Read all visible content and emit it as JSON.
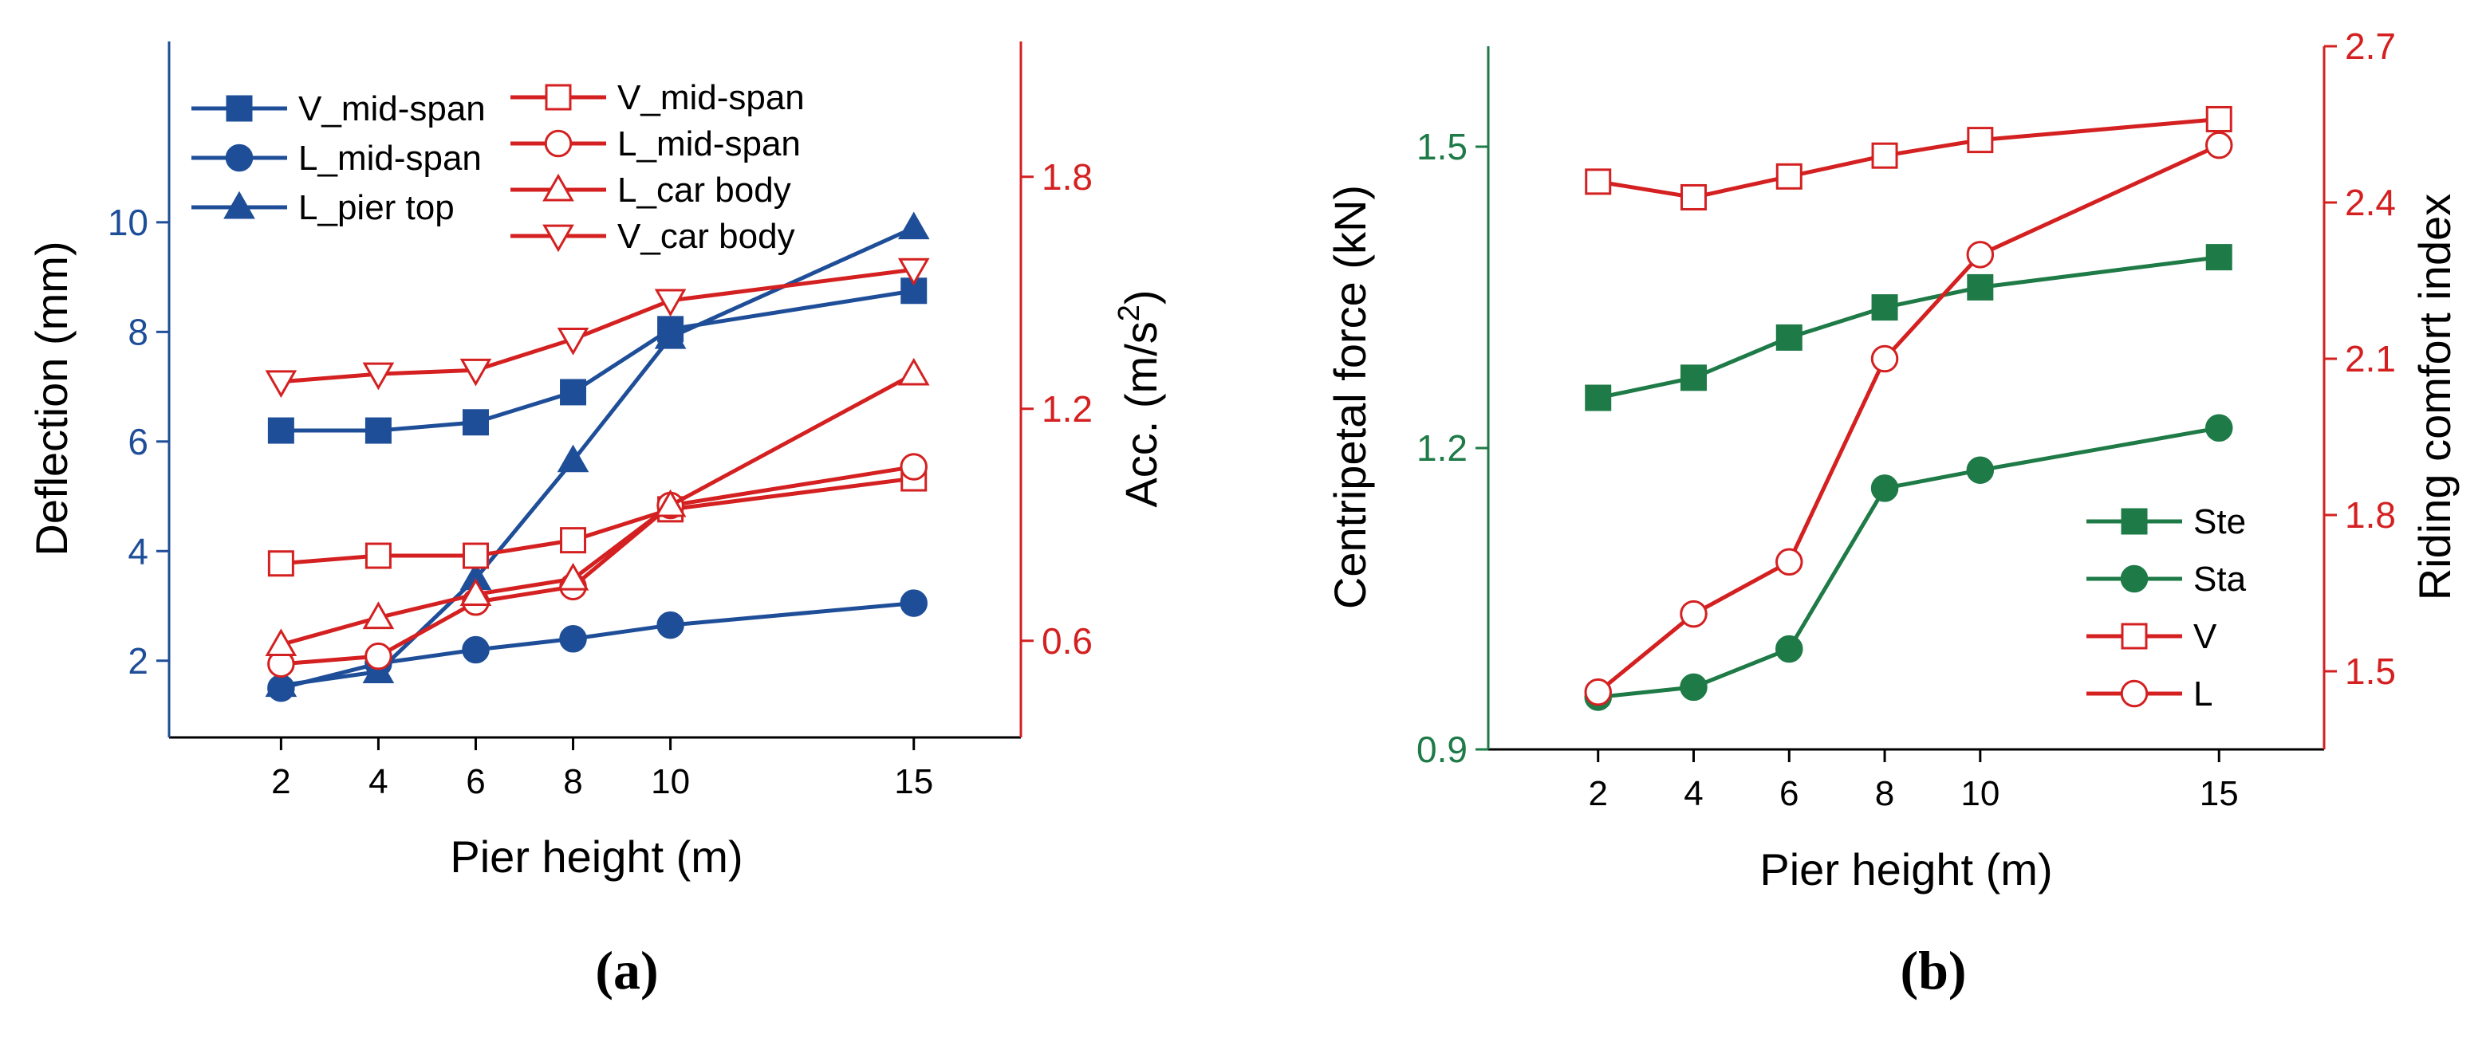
{
  "chart_data": [
    {
      "panel": "(a)",
      "type": "line",
      "xlabel": "Pier height (m)",
      "ylabel_left": "Deflection (mm)",
      "ylabel_right": "Acc. (m/s",
      "ylabel_right_sup": "2",
      "ylabel_right_tail": ")",
      "x": [
        2,
        4,
        6,
        8,
        10,
        15
      ],
      "x_ticks": [
        2,
        4,
        6,
        8,
        10,
        15
      ],
      "xlim": [
        -0.3,
        17.2
      ],
      "ylim_left": [
        0.6,
        13.3
      ],
      "ylim_right": [
        0.35,
        2.15
      ],
      "y_ticks_left": [
        2,
        4,
        6,
        8,
        10
      ],
      "y_ticks_right": [
        0.6,
        1.2,
        1.8
      ],
      "left_color": "#1f4e99",
      "right_color": "#d42020",
      "series": [
        {
          "name": "V_mid-span",
          "axis": "left",
          "marker": "square",
          "filled": true,
          "color": "#1f4e99",
          "values": [
            6.2,
            6.2,
            6.35,
            6.9,
            8.05,
            8.75
          ]
        },
        {
          "name": "L_mid-span",
          "axis": "left",
          "marker": "circle",
          "filled": true,
          "color": "#1f4e99",
          "values": [
            1.5,
            1.95,
            2.2,
            2.4,
            2.65,
            3.05
          ]
        },
        {
          "name": "L_pier top",
          "axis": "left",
          "marker": "triangle-up",
          "filled": true,
          "color": "#1f4e99",
          "values": [
            1.55,
            1.8,
            3.5,
            5.65,
            7.9,
            9.9
          ]
        },
        {
          "name": "V_mid-span",
          "axis": "right",
          "marker": "square",
          "filled": false,
          "color": "#d42020",
          "values": [
            0.8,
            0.82,
            0.82,
            0.86,
            0.94,
            1.02
          ]
        },
        {
          "name": "L_mid-span",
          "axis": "right",
          "marker": "circle",
          "filled": false,
          "color": "#d42020",
          "values": [
            0.54,
            0.56,
            0.7,
            0.74,
            0.95,
            1.05
          ]
        },
        {
          "name": "L_car body",
          "axis": "right",
          "marker": "triangle-up",
          "filled": false,
          "color": "#d42020",
          "values": [
            0.59,
            0.66,
            0.72,
            0.76,
            0.95,
            1.29
          ]
        },
        {
          "name": "V_car body",
          "axis": "right",
          "marker": "triangle-down",
          "filled": false,
          "color": "#d42020",
          "values": [
            1.27,
            1.29,
            1.3,
            1.38,
            1.48,
            1.56
          ]
        }
      ]
    },
    {
      "panel": "(b)",
      "type": "line",
      "xlabel": "Pier height (m)",
      "ylabel_left": "Centripetal force (kN)",
      "ylabel_right": "Riding comfort index",
      "x": [
        2,
        4,
        6,
        8,
        10,
        15
      ],
      "x_ticks": [
        2,
        4,
        6,
        8,
        10,
        15
      ],
      "xlim": [
        -0.3,
        17.2
      ],
      "ylim_left": [
        0.9,
        1.6
      ],
      "ylim_right": [
        1.35,
        2.7
      ],
      "y_ticks_left": [
        0.9,
        1.2,
        1.5
      ],
      "y_ticks_right": [
        1.5,
        1.8,
        2.1,
        2.4,
        2.7
      ],
      "left_color": "#1e7a46",
      "right_color": "#d42020",
      "series": [
        {
          "name": "Ste",
          "axis": "left",
          "marker": "square",
          "filled": true,
          "color": "#1e7a46",
          "values": [
            1.25,
            1.27,
            1.31,
            1.34,
            1.36,
            1.39
          ]
        },
        {
          "name": "Sta",
          "axis": "left",
          "marker": "circle",
          "filled": true,
          "color": "#1e7a46",
          "values": [
            0.952,
            0.962,
            1.0,
            1.16,
            1.178,
            1.22
          ]
        },
        {
          "name": "V",
          "axis": "right",
          "marker": "square",
          "filled": false,
          "color": "#d42020",
          "values": [
            2.44,
            2.41,
            2.45,
            2.49,
            2.52,
            2.56
          ]
        },
        {
          "name": "L",
          "axis": "right",
          "marker": "circle",
          "filled": false,
          "color": "#d42020",
          "values": [
            1.46,
            1.61,
            1.71,
            2.1,
            2.3,
            2.51
          ]
        }
      ]
    }
  ]
}
